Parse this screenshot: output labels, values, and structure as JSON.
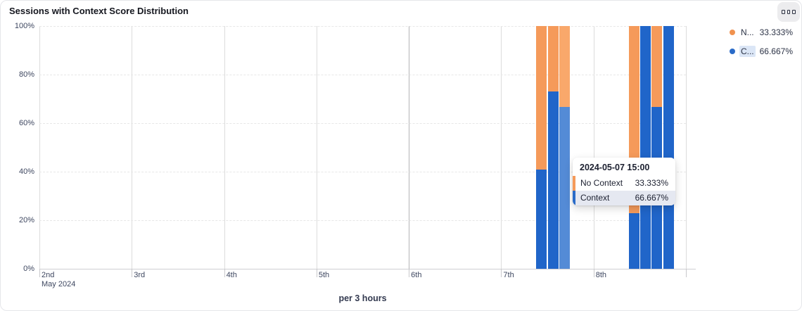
{
  "card": {
    "title": "Sessions with Context Score Distribution",
    "options_button": {
      "icon": "three-small-squares"
    }
  },
  "legend": {
    "items": [
      {
        "label": "N...",
        "value": "33.333%",
        "series": "No Context",
        "color": "#f0924f",
        "highlighted": false
      },
      {
        "label": "C...",
        "value": "66.667%",
        "series": "Context",
        "color": "#2a6bc8",
        "highlighted": true
      }
    ]
  },
  "tooltip": {
    "header": "2024-05-07 15:00",
    "rows": [
      {
        "label": "No Context",
        "value": "33.333%",
        "color": "#f59a5a",
        "highlighted": false
      },
      {
        "label": "Context",
        "value": "66.667%",
        "color": "#2a6bc8",
        "highlighted": true
      }
    ]
  },
  "chart_data": {
    "type": "bar",
    "stacked": true,
    "title": "Sessions with Context Score Distribution",
    "xlabel": "per 3 hours",
    "ylabel": "",
    "legend_position": "top-right",
    "x_axis": {
      "start": "2024-05-02",
      "end": "2024-05-09",
      "tick_labels": [
        "2nd",
        "3rd",
        "4th",
        "5th",
        "6th",
        "7th",
        "8th"
      ],
      "first_tick_sublabel": "May 2024",
      "bucket_hours": 3
    },
    "y_axis": {
      "min": 0,
      "max": 100,
      "tick_labels": [
        "0%",
        "20%",
        "40%",
        "60%",
        "80%",
        "100%"
      ],
      "unit": "%"
    },
    "series": [
      {
        "name": "No Context",
        "color": "#f59a5a",
        "hover_color": "#f9a86b"
      },
      {
        "name": "Context",
        "color": "#2065c9",
        "hover_color": "#548bd6"
      }
    ],
    "points": [
      {
        "time": "2024-05-07 09:00",
        "no_context": 59,
        "context": 41,
        "hovered": false
      },
      {
        "time": "2024-05-07 12:00",
        "no_context": 27,
        "context": 73,
        "hovered": false
      },
      {
        "time": "2024-05-07 15:00",
        "no_context": 33.333,
        "context": 66.667,
        "hovered": true
      },
      {
        "time": "2024-05-08 09:00",
        "no_context": 77,
        "context": 23,
        "hovered": false
      },
      {
        "time": "2024-05-08 12:00",
        "no_context": 0,
        "context": 100,
        "hovered": false
      },
      {
        "time": "2024-05-08 15:00",
        "no_context": 33.333,
        "context": 66.667,
        "hovered": false
      },
      {
        "time": "2024-05-08 18:00",
        "no_context": 0,
        "context": 100,
        "hovered": false
      }
    ]
  }
}
